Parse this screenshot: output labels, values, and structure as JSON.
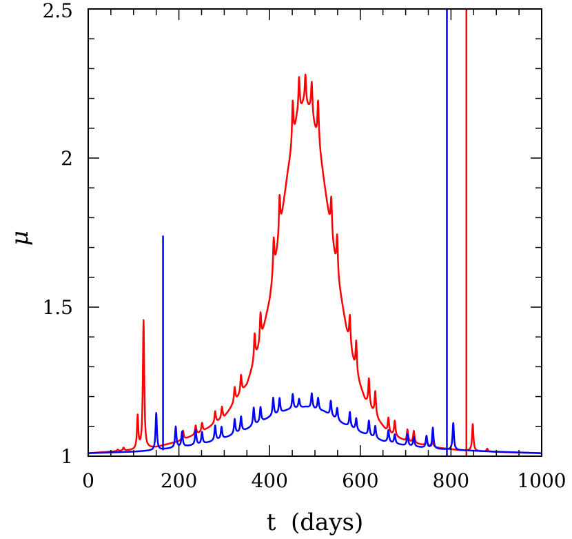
{
  "chart_data": {
    "type": "line",
    "title": "",
    "xlabel": "t  (days)",
    "ylabel": "μ",
    "xlim": [
      0,
      1000
    ],
    "ylim": [
      1,
      2.5
    ],
    "x_ticks": [
      0,
      200,
      400,
      600,
      800,
      1000
    ],
    "y_ticks": [
      1,
      1.5,
      2,
      2.5
    ],
    "x_minor_step": 50,
    "y_minor_step": 0.1,
    "grid": false,
    "legend": "none",
    "series": [
      {
        "color": "#ff0000",
        "base": [
          [
            0,
            1.01
          ],
          [
            100,
            1.02
          ],
          [
            150,
            1.03
          ],
          [
            200,
            1.05
          ],
          [
            250,
            1.08
          ],
          [
            300,
            1.13
          ],
          [
            350,
            1.24
          ],
          [
            380,
            1.38
          ],
          [
            400,
            1.52
          ],
          [
            420,
            1.72
          ],
          [
            440,
            1.95
          ],
          [
            460,
            2.13
          ],
          [
            475,
            2.18
          ],
          [
            490,
            2.16
          ],
          [
            510,
            2.03
          ],
          [
            530,
            1.81
          ],
          [
            550,
            1.6
          ],
          [
            570,
            1.42
          ],
          [
            590,
            1.28
          ],
          [
            610,
            1.19
          ],
          [
            640,
            1.12
          ],
          [
            660,
            1.08
          ],
          [
            700,
            1.05
          ],
          [
            760,
            1.03
          ],
          [
            820,
            1.02
          ],
          [
            880,
            1.015
          ],
          [
            1000,
            1.01
          ]
        ],
        "bumps": [
          [
            65,
            0.005
          ],
          [
            78,
            0.01
          ],
          [
            109,
            0.11
          ],
          [
            122,
            0.43
          ],
          [
            209,
            0.03
          ],
          [
            237,
            0.03
          ],
          [
            251,
            0.03
          ],
          [
            280,
            0.04
          ],
          [
            295,
            0.04
          ],
          [
            323,
            0.05
          ],
          [
            337,
            0.06
          ],
          [
            367,
            0.09
          ],
          [
            380,
            0.1
          ],
          [
            409,
            0.12
          ],
          [
            422,
            0.13
          ],
          [
            451,
            0.14
          ],
          [
            465,
            0.12
          ],
          [
            479,
            0.1
          ],
          [
            493,
            0.11
          ],
          [
            507,
            0.14
          ],
          [
            536,
            0.12
          ],
          [
            549,
            0.13
          ],
          [
            577,
            0.1
          ],
          [
            591,
            0.11
          ],
          [
            619,
            0.09
          ],
          [
            633,
            0.08
          ],
          [
            662,
            0.05
          ],
          [
            676,
            0.05
          ],
          [
            704,
            0.04
          ],
          [
            718,
            0.04
          ],
          [
            746,
            0.03
          ],
          [
            760,
            0.02
          ],
          [
            848,
            0.09
          ],
          [
            880,
            0.01
          ]
        ],
        "spikes": [
          [
            834,
            1.0,
            2.5
          ]
        ]
      },
      {
        "color": "#0000ff",
        "base": [
          [
            0,
            1.01
          ],
          [
            100,
            1.015
          ],
          [
            150,
            1.02
          ],
          [
            200,
            1.03
          ],
          [
            250,
            1.04
          ],
          [
            300,
            1.06
          ],
          [
            350,
            1.09
          ],
          [
            400,
            1.13
          ],
          [
            440,
            1.155
          ],
          [
            480,
            1.165
          ],
          [
            520,
            1.15
          ],
          [
            560,
            1.11
          ],
          [
            600,
            1.08
          ],
          [
            650,
            1.05
          ],
          [
            700,
            1.035
          ],
          [
            760,
            1.025
          ],
          [
            820,
            1.02
          ],
          [
            900,
            1.015
          ],
          [
            1000,
            1.01
          ]
        ],
        "bumps": [
          [
            150,
            0.125
          ],
          [
            193,
            0.07
          ],
          [
            207,
            0.05
          ],
          [
            237,
            0.05
          ],
          [
            251,
            0.04
          ],
          [
            280,
            0.05
          ],
          [
            294,
            0.04
          ],
          [
            323,
            0.05
          ],
          [
            337,
            0.05
          ],
          [
            365,
            0.06
          ],
          [
            380,
            0.05
          ],
          [
            408,
            0.06
          ],
          [
            422,
            0.05
          ],
          [
            451,
            0.05
          ],
          [
            465,
            0.03
          ],
          [
            493,
            0.05
          ],
          [
            507,
            0.04
          ],
          [
            535,
            0.05
          ],
          [
            549,
            0.04
          ],
          [
            577,
            0.05
          ],
          [
            591,
            0.04
          ],
          [
            619,
            0.05
          ],
          [
            633,
            0.04
          ],
          [
            662,
            0.04
          ],
          [
            676,
            0.03
          ],
          [
            704,
            0.04
          ],
          [
            718,
            0.03
          ],
          [
            746,
            0.04
          ],
          [
            760,
            0.07
          ],
          [
            805,
            0.09
          ]
        ],
        "spikes": [
          [
            165,
            1.02,
            1.74
          ],
          [
            791,
            1.0,
            2.5
          ]
        ]
      }
    ]
  }
}
